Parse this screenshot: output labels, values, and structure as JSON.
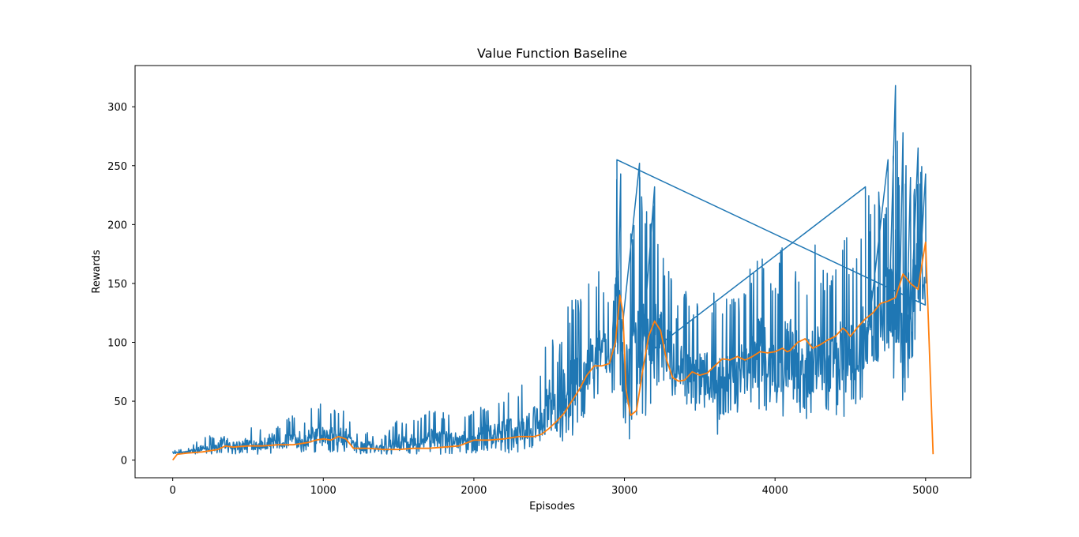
{
  "chart_data": {
    "type": "line",
    "title": "Value Function Baseline",
    "xlabel": "Episodes",
    "ylabel": "Rewards",
    "xlim": [
      -250,
      5300
    ],
    "ylim": [
      -15,
      335
    ],
    "xticks": [
      0,
      1000,
      2000,
      3000,
      4000,
      5000
    ],
    "yticks": [
      0,
      50,
      100,
      150,
      200,
      250,
      300
    ],
    "grid": false,
    "legend": "none",
    "series": [
      {
        "role": "raw episode rewards",
        "color": "#1f77b4",
        "x": [
          0,
          100,
          200,
          300,
          340,
          400,
          500,
          600,
          650,
          700,
          800,
          850,
          900,
          960,
          1000,
          1100,
          1150,
          1200,
          1300,
          1400,
          1500,
          1600,
          1700,
          1800,
          1900,
          2000,
          2100,
          2200,
          2300,
          2400,
          2450,
          2500,
          2560,
          2600,
          2650,
          2700,
          2750,
          2800,
          2850,
          2900,
          2950,
          2975,
          3000,
          3040,
          3100,
          3150,
          3200,
          3250,
          3300,
          3350,
          3400,
          3450,
          3500,
          3550,
          3600,
          3650,
          3700,
          3800,
          3900,
          4000,
          4050,
          4100,
          4150,
          4200,
          4250,
          4300,
          4350,
          4400,
          4450,
          4500,
          4550,
          4600,
          4650,
          4700,
          4750,
          4800,
          4820,
          4850,
          4870,
          4900,
          4950,
          5000
        ],
        "min": [
          5,
          5,
          5,
          5,
          5,
          5,
          5,
          5,
          5,
          5,
          6,
          6,
          6,
          6,
          6,
          6,
          5,
          5,
          5,
          5,
          5,
          5,
          5,
          5,
          5,
          6,
          6,
          6,
          6,
          6,
          6,
          8,
          10,
          15,
          20,
          30,
          40,
          45,
          50,
          55,
          60,
          62,
          20,
          15,
          25,
          40,
          55,
          60,
          50,
          45,
          45,
          40,
          40,
          40,
          8,
          35,
          40,
          40,
          40,
          40,
          35,
          40,
          40,
          35,
          30,
          40,
          35,
          40,
          25,
          45,
          45,
          50,
          45,
          55,
          60,
          60,
          60,
          30,
          60,
          80,
          100,
          110
        ],
        "max": [
          8,
          10,
          20,
          22,
          40,
          25,
          30,
          28,
          40,
          30,
          40,
          25,
          42,
          53,
          45,
          45,
          45,
          25,
          25,
          20,
          38,
          35,
          45,
          42,
          40,
          45,
          50,
          58,
          60,
          80,
          70,
          125,
          88,
          143,
          138,
          140,
          145,
          165,
          160,
          150,
          255,
          243,
          160,
          200,
          252,
          215,
          232,
          175,
          160,
          135,
          150,
          125,
          140,
          135,
          145,
          140,
          140,
          150,
          190,
          145,
          190,
          190,
          165,
          150,
          200,
          175,
          160,
          180,
          208,
          175,
          175,
          232,
          225,
          230,
          255,
          318,
          240,
          278,
          250,
          240,
          265,
          243
        ]
      },
      {
        "role": "moving average",
        "color": "#ff7f0e",
        "x": [
          0,
          30,
          100,
          200,
          300,
          350,
          400,
          500,
          600,
          700,
          800,
          900,
          950,
          1000,
          1050,
          1100,
          1150,
          1200,
          1300,
          1400,
          1500,
          1600,
          1700,
          1800,
          1900,
          2000,
          2100,
          2200,
          2300,
          2400,
          2450,
          2500,
          2550,
          2600,
          2650,
          2700,
          2750,
          2800,
          2850,
          2900,
          2940,
          2970,
          2990,
          3010,
          3040,
          3080,
          3120,
          3160,
          3200,
          3240,
          3280,
          3320,
          3360,
          3400,
          3450,
          3500,
          3550,
          3600,
          3650,
          3700,
          3750,
          3800,
          3850,
          3900,
          3950,
          4000,
          4050,
          4080,
          4100,
          4150,
          4200,
          4250,
          4300,
          4350,
          4400,
          4450,
          4470,
          4500,
          4550,
          4600,
          4650,
          4700,
          4750,
          4800,
          4850,
          4870,
          4900,
          4950,
          4980,
          5000,
          5050
        ],
        "y": [
          0,
          5,
          6,
          7,
          9,
          12,
          11,
          12,
          12,
          13,
          13,
          15,
          17,
          18,
          17,
          20,
          18,
          10,
          10,
          9,
          9,
          10,
          10,
          11,
          12,
          17,
          17,
          18,
          20,
          20,
          22,
          27,
          33,
          40,
          50,
          60,
          72,
          80,
          80,
          82,
          100,
          140,
          125,
          60,
          38,
          42,
          75,
          105,
          118,
          110,
          85,
          70,
          67,
          68,
          75,
          72,
          74,
          80,
          86,
          85,
          88,
          85,
          88,
          92,
          91,
          92,
          95,
          92,
          93,
          100,
          103,
          95,
          98,
          102,
          105,
          112,
          110,
          105,
          113,
          120,
          125,
          133,
          135,
          138,
          158,
          155,
          150,
          145,
          170,
          185,
          5
        ]
      }
    ]
  }
}
